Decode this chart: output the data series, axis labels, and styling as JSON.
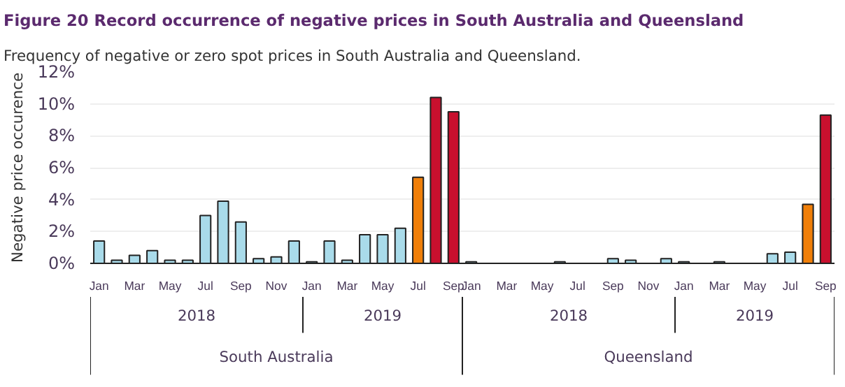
{
  "chart_data": {
    "type": "bar",
    "title": "Figure 20 Record occurrence of negative prices in South Australia and Queensland",
    "subtitle": "Frequency of negative or zero spot prices in South Australia and Queensland.",
    "ylabel": "Negative price occurence",
    "categories": [
      "Jan",
      null,
      "Mar",
      null,
      "May",
      null,
      "Jul",
      null,
      "Sep",
      null,
      "Nov",
      null,
      "Jan",
      null,
      "Mar",
      null,
      "May",
      null,
      "Jul",
      null,
      "Sep",
      "Jan",
      null,
      "Mar",
      null,
      "May",
      null,
      "Jul",
      null,
      "Sep",
      null,
      "Nov",
      null,
      "Jan",
      null,
      "Mar",
      null,
      "May",
      null,
      "Jul",
      null,
      "Sep"
    ],
    "values": [
      1.4,
      0.2,
      0.5,
      0.8,
      0.2,
      0.2,
      3,
      3.9,
      2.6,
      0.3,
      0.4,
      1.4,
      0.1,
      1.4,
      0.2,
      1.8,
      1.8,
      2.2,
      5.4,
      10.4,
      9.5,
      0.1,
      0,
      0,
      0,
      0,
      0.1,
      0,
      0,
      0.3,
      0.2,
      0,
      0.3,
      0.1,
      0,
      0.1,
      0,
      0,
      0.6,
      0.7,
      3.7,
      9.3
    ],
    "colors": [
      "#a9dbea",
      "#a9dbea",
      "#a9dbea",
      "#a9dbea",
      "#a9dbea",
      "#a9dbea",
      "#a9dbea",
      "#a9dbea",
      "#a9dbea",
      "#a9dbea",
      "#a9dbea",
      "#a9dbea",
      "#a9dbea",
      "#a9dbea",
      "#a9dbea",
      "#a9dbea",
      "#a9dbea",
      "#a9dbea",
      "#f07f09",
      "#c8102e",
      "#c8102e",
      "#a9dbea",
      "#a9dbea",
      "#a9dbea",
      "#a9dbea",
      "#a9dbea",
      "#a9dbea",
      "#a9dbea",
      "#a9dbea",
      "#a9dbea",
      "#a9dbea",
      "#a9dbea",
      "#a9dbea",
      "#a9dbea",
      "#a9dbea",
      "#a9dbea",
      "#a9dbea",
      "#a9dbea",
      "#a9dbea",
      "#a9dbea",
      "#f07f09",
      "#c8102e"
    ],
    "ylim": [
      0,
      12
    ],
    "yticks": [
      {
        "value": 0,
        "label": "0%"
      },
      {
        "value": 2,
        "label": "2%"
      },
      {
        "value": 4,
        "label": "4%"
      },
      {
        "value": 6,
        "label": "6%"
      },
      {
        "value": 8,
        "label": "8%"
      },
      {
        "value": 10,
        "label": "10%"
      },
      {
        "value": 12,
        "label": "12%"
      }
    ],
    "grid": "y",
    "annotations": [
      "2018",
      "2019",
      "2018",
      "2019",
      "South Australia",
      "Queensland"
    ]
  }
}
